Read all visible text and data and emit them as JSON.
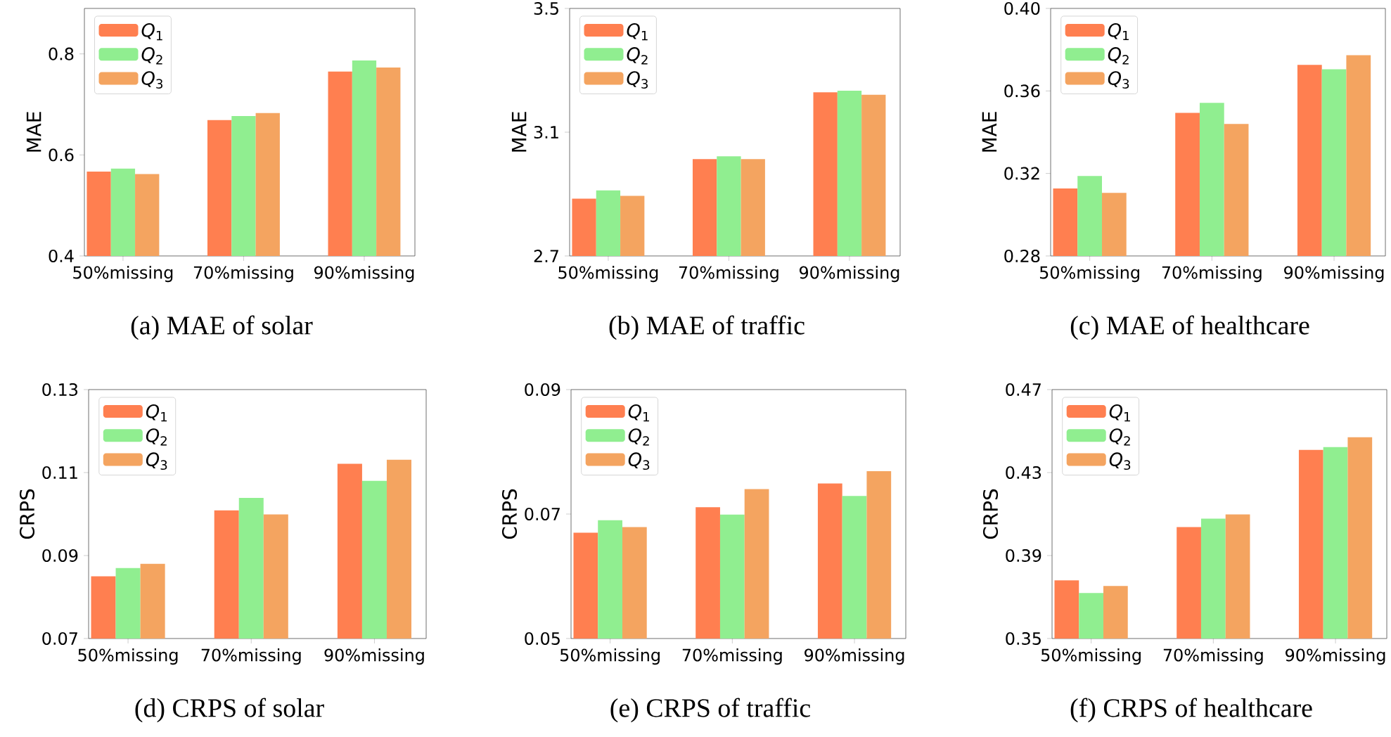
{
  "chart_data": [
    {
      "type": "bar",
      "title": "(a) MAE of solar",
      "ylabel": "MAE",
      "categories": [
        "50%missing",
        "70%missing",
        "90%missing"
      ],
      "ylim": [
        0.4,
        0.89
      ],
      "yticks": [
        0.4,
        0.6,
        0.8
      ],
      "legend": "top left",
      "series": [
        {
          "name": "*Q*$_{1}$",
          "color": "#ff7f50",
          "values": [
            0.567,
            0.669,
            0.765
          ]
        },
        {
          "name": "*Q*$_{2}$",
          "color": "#90ee90",
          "values": [
            0.573,
            0.677,
            0.787
          ]
        },
        {
          "name": "*Q*$_{3}$",
          "color": "#f4a460",
          "values": [
            0.562,
            0.683,
            0.773
          ]
        }
      ]
    },
    {
      "type": "bar",
      "title": "(b) MAE of traffic",
      "ylabel": "MAE",
      "categories": [
        "50%missing",
        "70%missing",
        "90%missing"
      ],
      "ylim": [
        2.7,
        3.5
      ],
      "yticks": [
        2.7,
        3.1,
        3.5
      ],
      "legend": "top left",
      "series": [
        {
          "name": "*Q*$_{1}$",
          "color": "#ff7f50",
          "values": [
            2.885,
            3.013,
            3.229
          ]
        },
        {
          "name": "*Q*$_{2}$",
          "color": "#90ee90",
          "values": [
            2.912,
            3.022,
            3.234
          ]
        },
        {
          "name": "*Q*$_{3}$",
          "color": "#f4a460",
          "values": [
            2.894,
            3.013,
            3.221
          ]
        }
      ]
    },
    {
      "type": "bar",
      "title": "(c) MAE of healthcare",
      "ylabel": "MAE",
      "categories": [
        "50%missing",
        "70%missing",
        "90%missing"
      ],
      "ylim": [
        0.28,
        0.4
      ],
      "yticks": [
        0.28,
        0.32,
        0.36,
        {
          "value": 0.4,
          "label": "0.40"
        }
      ],
      "legend": "top left",
      "series": [
        {
          "name": "*Q*$_{1}$",
          "color": "#ff7f50",
          "values": [
            0.3127,
            0.3494,
            0.3726
          ]
        },
        {
          "name": "*Q*$_{2}$",
          "color": "#90ee90",
          "values": [
            0.3188,
            0.3542,
            0.3705
          ]
        },
        {
          "name": "*Q*$_{3}$",
          "color": "#f4a460",
          "values": [
            0.3106,
            0.344,
            0.3773
          ]
        }
      ]
    },
    {
      "type": "bar",
      "title": "(d) CRPS of solar",
      "ylabel": "CRPS",
      "categories": [
        "50%missing",
        "70%missing",
        "90%missing"
      ],
      "ylim": [
        0.07,
        0.13
      ],
      "yticks": [
        0.07,
        0.09,
        0.11,
        0.13
      ],
      "legend": "top left",
      "series": [
        {
          "name": "*Q*$_{1}$",
          "color": "#ff7f50",
          "values": [
            0.085,
            0.1009,
            0.1121
          ]
        },
        {
          "name": "*Q*$_{2}$",
          "color": "#90ee90",
          "values": [
            0.087,
            0.1039,
            0.108
          ]
        },
        {
          "name": "*Q*$_{3}$",
          "color": "#f4a460",
          "values": [
            0.088,
            0.0999,
            0.1131
          ]
        }
      ]
    },
    {
      "type": "bar",
      "title": "(e) CRPS of traffic",
      "ylabel": "CRPS",
      "categories": [
        "50%missing",
        "70%missing",
        "90%missing"
      ],
      "ylim": [
        0.05,
        0.09
      ],
      "yticks": [
        0.05,
        0.07,
        0.09
      ],
      "legend": "top left",
      "series": [
        {
          "name": "*Q*$_{1}$",
          "color": "#ff7f50",
          "values": [
            0.067,
            0.0711,
            0.0749
          ]
        },
        {
          "name": "*Q*$_{2}$",
          "color": "#90ee90",
          "values": [
            0.069,
            0.0699,
            0.0729
          ]
        },
        {
          "name": "*Q*$_{3}$",
          "color": "#f4a460",
          "values": [
            0.0679,
            0.074,
            0.0769
          ]
        }
      ]
    },
    {
      "type": "bar",
      "title": "(f) CRPS of healthcare",
      "ylabel": "CRPS",
      "categories": [
        "50%missing",
        "70%missing",
        "90%missing"
      ],
      "ylim": [
        0.35,
        0.47
      ],
      "yticks": [
        0.35,
        0.39,
        0.43,
        0.47
      ],
      "legend": "top left",
      "series": [
        {
          "name": "*Q*$_{1}$",
          "color": "#ff7f50",
          "values": [
            0.378,
            0.4037,
            0.4409
          ]
        },
        {
          "name": "*Q*$_{2}$",
          "color": "#90ee90",
          "values": [
            0.3719,
            0.4078,
            0.4423
          ]
        },
        {
          "name": "*Q*$_{3}$",
          "color": "#f4a460",
          "values": [
            0.3753,
            0.4098,
            0.447
          ]
        }
      ]
    }
  ]
}
